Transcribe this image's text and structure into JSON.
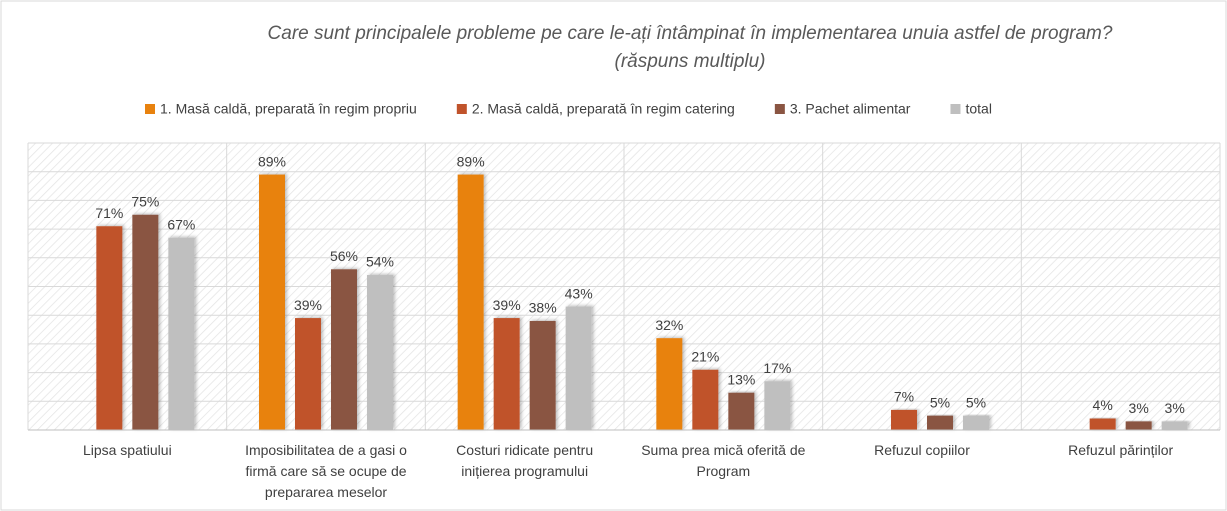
{
  "chart_data": {
    "type": "bar",
    "title": "Care sunt principalele probleme pe care le-ați întâmpinat în implementarea unuia astfel de program?",
    "subtitle": "(răspuns multiplu)",
    "categories": [
      "Lipsa spatiului",
      "Imposibilitatea de a gasi o firmă care să se ocupe de prepararea meselor",
      "Costuri ridicate pentru inițierea programului",
      "Suma prea mică oferită de Program",
      "Refuzul copiilor",
      "Refuzul părinților"
    ],
    "series": [
      {
        "name": "1. Masă caldă, preparată în regim propriu",
        "color": "#e8820e",
        "values": [
          null,
          89,
          89,
          32,
          null,
          null
        ],
        "value_labels": [
          null,
          "89%",
          "89%",
          "32%",
          null,
          null
        ]
      },
      {
        "name": "2. Masă caldă, preparată în regim catering",
        "color": "#c0532b",
        "values": [
          71,
          39,
          39,
          21,
          7,
          4
        ],
        "value_labels": [
          "71%",
          "39%",
          "39%",
          "21%",
          "7%",
          "4%"
        ]
      },
      {
        "name": "3. Pachet alimentar",
        "color": "#8a5542",
        "values": [
          75,
          56,
          38,
          13,
          5,
          3
        ],
        "value_labels": [
          "75%",
          "56%",
          "38%",
          "13%",
          "5%",
          "3%"
        ]
      },
      {
        "name": "total",
        "color": "#bfbfbf",
        "values": [
          67,
          54,
          43,
          17,
          5,
          3
        ],
        "value_labels": [
          "67%",
          "54%",
          "43%",
          "17%",
          "5%",
          "3%"
        ]
      }
    ],
    "ylim": [
      0,
      100
    ],
    "yticks": [
      0,
      10,
      20,
      30,
      40,
      50,
      60,
      70,
      80,
      90,
      100
    ],
    "grid": true
  }
}
